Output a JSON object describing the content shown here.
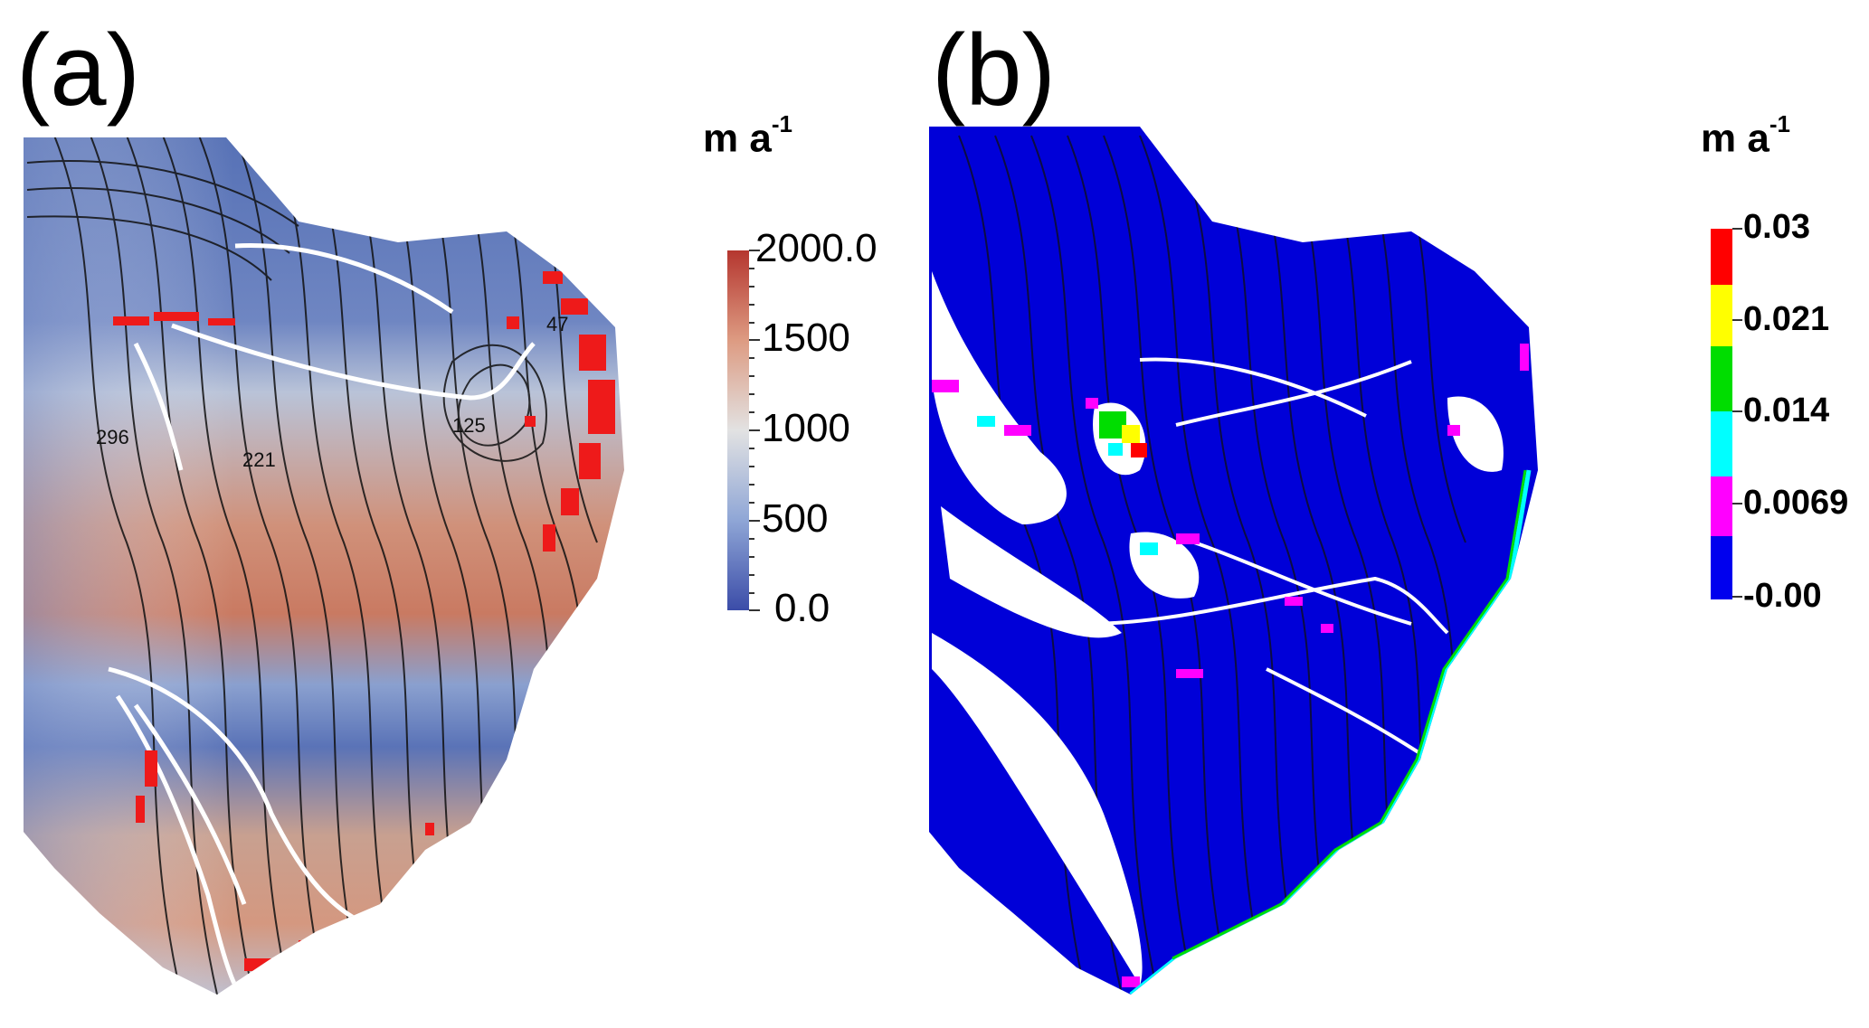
{
  "panels": [
    {
      "letter": "(a)",
      "unit_main": "m a",
      "unit_exp": "-1",
      "colorbar": {
        "type": "continuous",
        "ticks": [
          "2000.0",
          "1500",
          "1000",
          "500",
          "0.0"
        ],
        "range": [
          0,
          2000
        ],
        "colors": [
          "#b5362f",
          "#dd9b82",
          "#e2e2e2",
          "#8fa6d6",
          "#3b4ca8"
        ]
      },
      "contour_labels": [
        "296",
        "221",
        "125",
        "47"
      ]
    },
    {
      "letter": "(b)",
      "unit_main": "m a",
      "unit_exp": "-1",
      "colorbar": {
        "type": "discrete",
        "ticks": [
          "0.03",
          "0.021",
          "0.014",
          "0.0069",
          "-0.00"
        ],
        "colors": [
          "#ff0000",
          "#ffff00",
          "#00dd00",
          "#00ffff",
          "#ff00ff",
          "#0000ee"
        ]
      }
    }
  ]
}
